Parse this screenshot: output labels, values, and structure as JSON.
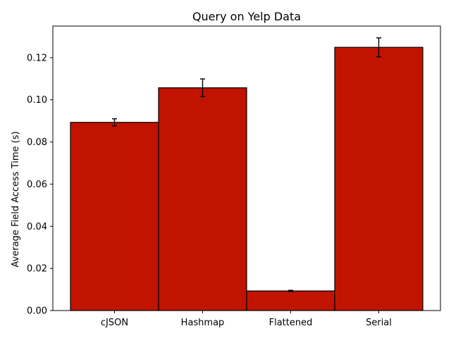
{
  "chart_data": {
    "type": "bar",
    "title": "Query on Yelp Data",
    "xlabel": "",
    "ylabel": "Average Field Access Time (s)",
    "categories": [
      "cJSON",
      "Hashmap",
      "Flattened",
      "Serial"
    ],
    "values": [
      0.0893,
      0.1057,
      0.0093,
      0.1249
    ],
    "errors": [
      0.0017,
      0.0042,
      0.0003,
      0.0045
    ],
    "ylim": [
      0,
      0.135
    ],
    "yticks": [
      0.0,
      0.02,
      0.04,
      0.06,
      0.08,
      0.1,
      0.12
    ],
    "ytick_labels": [
      "0.00",
      "0.02",
      "0.04",
      "0.06",
      "0.08",
      "0.10",
      "0.12"
    ],
    "grid": false,
    "legend": "none",
    "bar_color": "#c11400",
    "edge_color": "#000000"
  }
}
